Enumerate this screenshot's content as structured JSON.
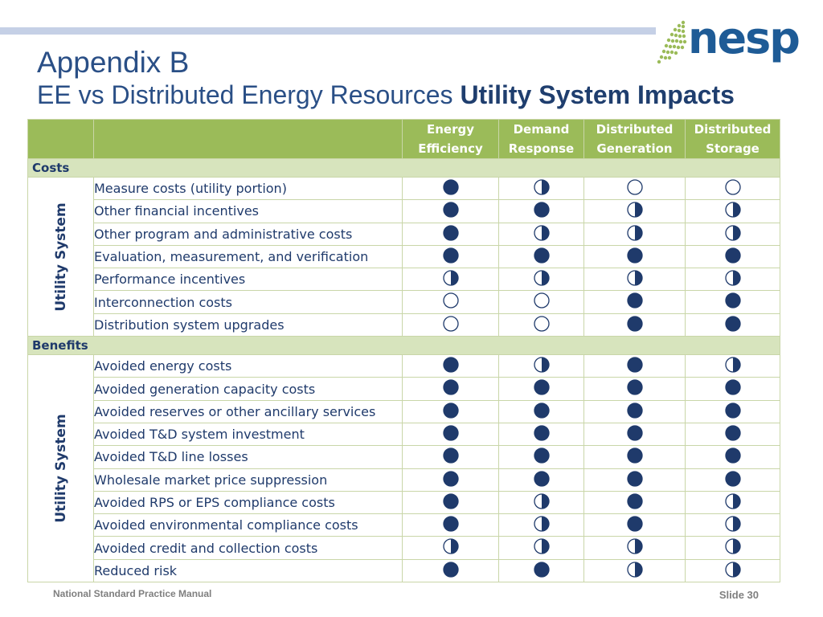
{
  "header": {
    "title": "Appendix B",
    "subtitle_regular": "EE vs Distributed Energy Resources ",
    "subtitle_bold": "Utility System Impacts",
    "logo_text": "nesp"
  },
  "colors": {
    "accent": "#9bbb59",
    "section": "#d7e4bd",
    "navy": "#1f3a6b",
    "title_blue": "#2a4f86"
  },
  "legend_values": {
    "full": "full-circle-icon",
    "half": "half-circle-icon",
    "empty": "empty-circle-icon"
  },
  "table": {
    "columns": [
      {
        "line1": "Energy",
        "line2": "Efficiency"
      },
      {
        "line1": "Demand",
        "line2": "Response"
      },
      {
        "line1": "Distributed",
        "line2": "Generation"
      },
      {
        "line1": "Distributed",
        "line2": "Storage"
      }
    ],
    "sections": [
      {
        "title": "Costs",
        "group_label": "Utility System",
        "rows": [
          {
            "label": "Measure costs (utility portion)",
            "values": [
              "full",
              "half",
              "empty",
              "empty"
            ]
          },
          {
            "label": "Other financial incentives",
            "values": [
              "full",
              "full",
              "half",
              "half"
            ]
          },
          {
            "label": "Other program and administrative costs",
            "values": [
              "full",
              "half",
              "half",
              "half"
            ]
          },
          {
            "label": "Evaluation, measurement, and verification",
            "values": [
              "full",
              "full",
              "full",
              "full"
            ]
          },
          {
            "label": "Performance incentives",
            "values": [
              "half",
              "half",
              "half",
              "half"
            ]
          },
          {
            "label": "Interconnection costs",
            "values": [
              "empty",
              "empty",
              "full",
              "full"
            ]
          },
          {
            "label": "Distribution system upgrades",
            "values": [
              "empty",
              "empty",
              "full",
              "full"
            ]
          }
        ]
      },
      {
        "title": "Benefits",
        "group_label": "Utility System",
        "rows": [
          {
            "label": "Avoided energy costs",
            "values": [
              "full",
              "half",
              "full",
              "half"
            ]
          },
          {
            "label": "Avoided generation capacity costs",
            "values": [
              "full",
              "full",
              "full",
              "full"
            ]
          },
          {
            "label": "Avoided reserves or other ancillary services",
            "values": [
              "full",
              "full",
              "full",
              "full"
            ]
          },
          {
            "label": "Avoided T&D system investment",
            "values": [
              "full",
              "full",
              "full",
              "full"
            ]
          },
          {
            "label": "Avoided T&D line losses",
            "values": [
              "full",
              "full",
              "full",
              "full"
            ]
          },
          {
            "label": "Wholesale market price suppression",
            "values": [
              "full",
              "full",
              "full",
              "full"
            ]
          },
          {
            "label": "Avoided RPS or EPS compliance costs",
            "values": [
              "full",
              "half",
              "full",
              "half"
            ]
          },
          {
            "label": "Avoided environmental compliance costs",
            "values": [
              "full",
              "half",
              "full",
              "half"
            ]
          },
          {
            "label": "Avoided credit and collection costs",
            "values": [
              "half",
              "half",
              "half",
              "half"
            ]
          },
          {
            "label": "Reduced risk",
            "values": [
              "full",
              "full",
              "half",
              "half"
            ]
          }
        ]
      }
    ]
  },
  "footer": {
    "left": "National Standard Practice Manual",
    "right": "Slide 30"
  }
}
